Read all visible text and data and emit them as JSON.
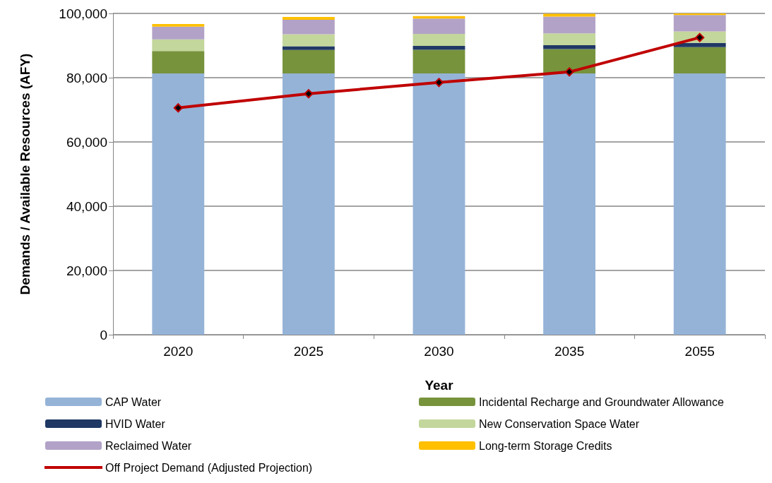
{
  "chart_data": {
    "type": "bar",
    "stacked": true,
    "xlabel": "Year",
    "ylabel": "Demands / Available Resources (AFY)",
    "categories": [
      "2020",
      "2025",
      "2030",
      "2035",
      "2055"
    ],
    "series": [
      {
        "name": "CAP Water",
        "color": "#95b3d7",
        "values": [
          81300,
          81300,
          81300,
          81300,
          81300
        ]
      },
      {
        "name": "Incidental Recharge and Groundwater Allowance",
        "color": "#77933c",
        "values": [
          7000,
          7300,
          7400,
          7600,
          8200
        ]
      },
      {
        "name": "HVID Water",
        "color": "#1f3864",
        "values": [
          0,
          1200,
          1200,
          1200,
          1300
        ]
      },
      {
        "name": "New Conservation Space Water",
        "color": "#c3d69b",
        "values": [
          3600,
          3700,
          3700,
          3700,
          3600
        ]
      },
      {
        "name": "Reclaimed Water",
        "color": "#b2a2c7",
        "values": [
          4000,
          4500,
          4800,
          5200,
          5100
        ]
      },
      {
        "name": "Long-term Storage Credits",
        "color": "#ffc000",
        "values": [
          800,
          900,
          800,
          900,
          500
        ]
      },
      {
        "name": "Off Project Demand (Adjusted Projection)",
        "type": "line",
        "color": "#c00000",
        "marker": "diamond",
        "line_style": "solid",
        "values": [
          70600,
          75000,
          78500,
          81800,
          92500
        ]
      }
    ],
    "ylim": [
      0,
      100000
    ],
    "yticks": [
      0,
      {
        "value": 20000,
        "label": "20,000"
      },
      {
        "value": 40000,
        "label": "40,000"
      },
      {
        "value": 60000,
        "label": "60,000"
      },
      {
        "value": 80000,
        "label": "80,000"
      },
      {
        "value": 100000,
        "label": "100,000"
      }
    ],
    "grid": "y",
    "legend": "bottom"
  }
}
